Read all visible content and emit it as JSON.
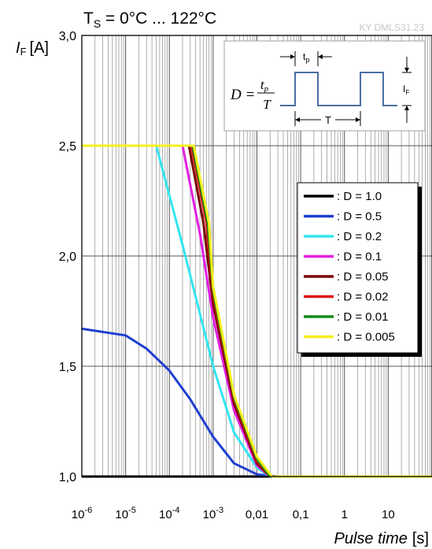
{
  "header": {
    "condition_main": "T",
    "condition_sub": "S",
    "condition_rest": " = 0°C ... 122°C",
    "doc_id": "KY DMLS31.23"
  },
  "axes": {
    "y_symbol": "I",
    "y_sub": "F",
    "y_unit": "[A]",
    "x_label_italic": "Pulse time",
    "x_unit": "[s]"
  },
  "inset": {
    "formula_lhs": "D =",
    "formula_num": "t",
    "formula_num_sub": "p",
    "formula_den": "T",
    "tp_main": "t",
    "tp_sub": "p",
    "T_label": "T",
    "IF_main": "I",
    "IF_sub": "F"
  },
  "chart_data": {
    "type": "line",
    "x_scale": "log",
    "xlim": [
      1e-06,
      100
    ],
    "ylim": [
      1.0,
      3.0
    ],
    "grid": true,
    "legend_position": "right-middle",
    "x_ticks": [
      {
        "value": 1e-06,
        "base": "10",
        "exp": "-6"
      },
      {
        "value": 1e-05,
        "base": "10",
        "exp": "-5"
      },
      {
        "value": 0.0001,
        "base": "10",
        "exp": "-4"
      },
      {
        "value": 0.001,
        "base": "10",
        "exp": "-3"
      },
      {
        "value": 0.01,
        "base": "0,01",
        "exp": ""
      },
      {
        "value": 0.1,
        "base": "0,1",
        "exp": ""
      },
      {
        "value": 1,
        "base": "1",
        "exp": ""
      },
      {
        "value": 10,
        "base": "10",
        "exp": ""
      }
    ],
    "y_ticks": [
      {
        "value": 1.0,
        "label": "1,0"
      },
      {
        "value": 1.5,
        "label": "1,5"
      },
      {
        "value": 2.0,
        "label": "2,0"
      },
      {
        "value": 2.5,
        "label": "2,5"
      },
      {
        "value": 3.0,
        "label": "3,0"
      }
    ],
    "series": [
      {
        "name": ": D = 1.0",
        "color": "#000000",
        "points": [
          [
            1e-06,
            1.0
          ],
          [
            100,
            1.0
          ]
        ]
      },
      {
        "name": ": D = 0.5",
        "color": "#1f3fd0",
        "points": [
          [
            1e-06,
            1.67
          ],
          [
            1e-05,
            1.64
          ],
          [
            3e-05,
            1.58
          ],
          [
            0.0001,
            1.48
          ],
          [
            0.0003,
            1.35
          ],
          [
            0.001,
            1.18
          ],
          [
            0.003,
            1.06
          ],
          [
            0.01,
            1.01
          ],
          [
            0.03,
            1.0
          ],
          [
            100,
            1.0
          ]
        ]
      },
      {
        "name": ": D = 0.2",
        "color": "#33e5f0",
        "points": [
          [
            1e-06,
            2.5
          ],
          [
            5e-05,
            2.5
          ],
          [
            0.0002,
            2.05
          ],
          [
            0.001,
            1.5
          ],
          [
            0.003,
            1.2
          ],
          [
            0.01,
            1.04
          ],
          [
            0.02,
            1.0
          ],
          [
            100,
            1.0
          ]
        ]
      },
      {
        "name": ": D = 0.1",
        "color": "#e31ee3",
        "points": [
          [
            1e-06,
            2.5
          ],
          [
            0.0002,
            2.5
          ],
          [
            0.0005,
            2.1
          ],
          [
            0.001,
            1.72
          ],
          [
            0.003,
            1.3
          ],
          [
            0.01,
            1.05
          ],
          [
            0.02,
            1.0
          ],
          [
            100,
            1.0
          ]
        ]
      },
      {
        "name": ": D = 0.05",
        "color": "#7a0000",
        "points": [
          [
            1e-06,
            2.5
          ],
          [
            0.00028,
            2.5
          ],
          [
            0.0006,
            2.15
          ],
          [
            0.001,
            1.78
          ],
          [
            0.003,
            1.33
          ],
          [
            0.01,
            1.06
          ],
          [
            0.02,
            1.0
          ],
          [
            100,
            1.0
          ]
        ]
      },
      {
        "name": ": D = 0.02",
        "color": "#e01010",
        "points": [
          [
            1e-06,
            2.5
          ],
          [
            0.00032,
            2.5
          ],
          [
            0.0007,
            2.15
          ],
          [
            0.001,
            1.82
          ],
          [
            0.003,
            1.35
          ],
          [
            0.01,
            1.07
          ],
          [
            0.02,
            1.0
          ],
          [
            100,
            1.0
          ]
        ]
      },
      {
        "name": ": D = 0.01",
        "color": "#158a15",
        "points": [
          [
            1e-06,
            2.5
          ],
          [
            0.00034,
            2.5
          ],
          [
            0.00075,
            2.15
          ],
          [
            0.001,
            1.84
          ],
          [
            0.003,
            1.36
          ],
          [
            0.01,
            1.08
          ],
          [
            0.02,
            1.0
          ],
          [
            100,
            1.0
          ]
        ]
      },
      {
        "name": ": D = 0.005",
        "color": "#f5f01a",
        "points": [
          [
            1e-06,
            2.5
          ],
          [
            0.00036,
            2.5
          ],
          [
            0.0008,
            2.15
          ],
          [
            0.001,
            1.86
          ],
          [
            0.003,
            1.37
          ],
          [
            0.01,
            1.09
          ],
          [
            0.022,
            1.0
          ],
          [
            100,
            1.0
          ]
        ]
      }
    ]
  }
}
